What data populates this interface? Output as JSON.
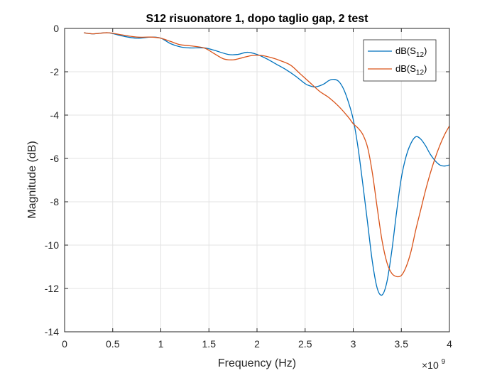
{
  "chart_data": {
    "type": "line",
    "title": "S12 risuonatore 1, dopo taglio gap, 2 test",
    "xlabel": "Frequency (Hz)",
    "ylabel": "Magnitude (dB)",
    "x_exponent_label": "×10",
    "x_exponent_power": "9",
    "xlim": [
      0,
      4
    ],
    "ylim": [
      -14,
      0
    ],
    "x_scale": 1000000000,
    "xticks": [
      0,
      0.5,
      1,
      1.5,
      2,
      2.5,
      3,
      3.5,
      4
    ],
    "xtick_labels": [
      "0",
      "0.5",
      "1",
      "1.5",
      "2",
      "2.5",
      "3",
      "3.5",
      "4"
    ],
    "yticks": [
      0,
      -2,
      -4,
      -6,
      -8,
      -10,
      -12,
      -14
    ],
    "ytick_labels": [
      "0",
      "-2",
      "-4",
      "-6",
      "-8",
      "-10",
      "-12",
      "-14"
    ],
    "grid": true,
    "legend_position": "top-right",
    "series": [
      {
        "name": "dB(S12)",
        "legend_base": "dB(S",
        "legend_sub": "12",
        "legend_close": ")",
        "color": "#0072BD",
        "x": [
          0.2,
          0.3,
          0.45,
          0.6,
          0.75,
          0.9,
          1.0,
          1.1,
          1.2,
          1.3,
          1.45,
          1.55,
          1.7,
          1.8,
          1.9,
          2.0,
          2.1,
          2.2,
          2.3,
          2.4,
          2.5,
          2.55,
          2.6,
          2.65,
          2.7,
          2.75,
          2.8,
          2.85,
          2.9,
          2.95,
          3.0,
          3.05,
          3.1,
          3.15,
          3.2,
          3.25,
          3.3,
          3.35,
          3.4,
          3.45,
          3.5,
          3.55,
          3.6,
          3.65,
          3.7,
          3.75,
          3.8,
          3.85,
          3.9,
          3.95,
          4.0
        ],
        "y": [
          -0.2,
          -0.25,
          -0.2,
          -0.35,
          -0.45,
          -0.4,
          -0.45,
          -0.7,
          -0.85,
          -0.9,
          -0.9,
          -1.0,
          -1.2,
          -1.2,
          -1.1,
          -1.2,
          -1.4,
          -1.65,
          -1.9,
          -2.2,
          -2.55,
          -2.65,
          -2.7,
          -2.65,
          -2.55,
          -2.4,
          -2.35,
          -2.45,
          -2.8,
          -3.4,
          -4.2,
          -5.5,
          -7.2,
          -9.0,
          -10.8,
          -12.0,
          -12.3,
          -11.7,
          -10.3,
          -8.5,
          -6.9,
          -5.9,
          -5.3,
          -5.0,
          -5.1,
          -5.4,
          -5.8,
          -6.1,
          -6.3,
          -6.35,
          -6.3
        ]
      },
      {
        "name": "dB(S12)",
        "legend_base": "dB(S",
        "legend_sub": "12",
        "legend_close": ")",
        "color": "#D95319",
        "x": [
          0.2,
          0.3,
          0.45,
          0.6,
          0.75,
          0.9,
          1.0,
          1.1,
          1.2,
          1.3,
          1.45,
          1.55,
          1.65,
          1.75,
          1.85,
          1.95,
          2.05,
          2.15,
          2.25,
          2.35,
          2.45,
          2.55,
          2.65,
          2.75,
          2.85,
          2.95,
          3.0,
          3.05,
          3.1,
          3.15,
          3.2,
          3.25,
          3.3,
          3.35,
          3.4,
          3.45,
          3.5,
          3.55,
          3.6,
          3.65,
          3.7,
          3.75,
          3.8,
          3.85,
          3.9,
          3.95,
          4.0
        ],
        "y": [
          -0.2,
          -0.25,
          -0.2,
          -0.3,
          -0.4,
          -0.4,
          -0.45,
          -0.6,
          -0.75,
          -0.8,
          -0.9,
          -1.15,
          -1.4,
          -1.45,
          -1.35,
          -1.25,
          -1.25,
          -1.35,
          -1.5,
          -1.7,
          -2.1,
          -2.5,
          -2.9,
          -3.2,
          -3.6,
          -4.1,
          -4.4,
          -4.6,
          -4.9,
          -5.5,
          -6.7,
          -8.3,
          -9.8,
          -10.8,
          -11.3,
          -11.45,
          -11.4,
          -11.0,
          -10.3,
          -9.3,
          -8.4,
          -7.5,
          -6.7,
          -6.0,
          -5.4,
          -4.9,
          -4.5
        ]
      }
    ]
  }
}
